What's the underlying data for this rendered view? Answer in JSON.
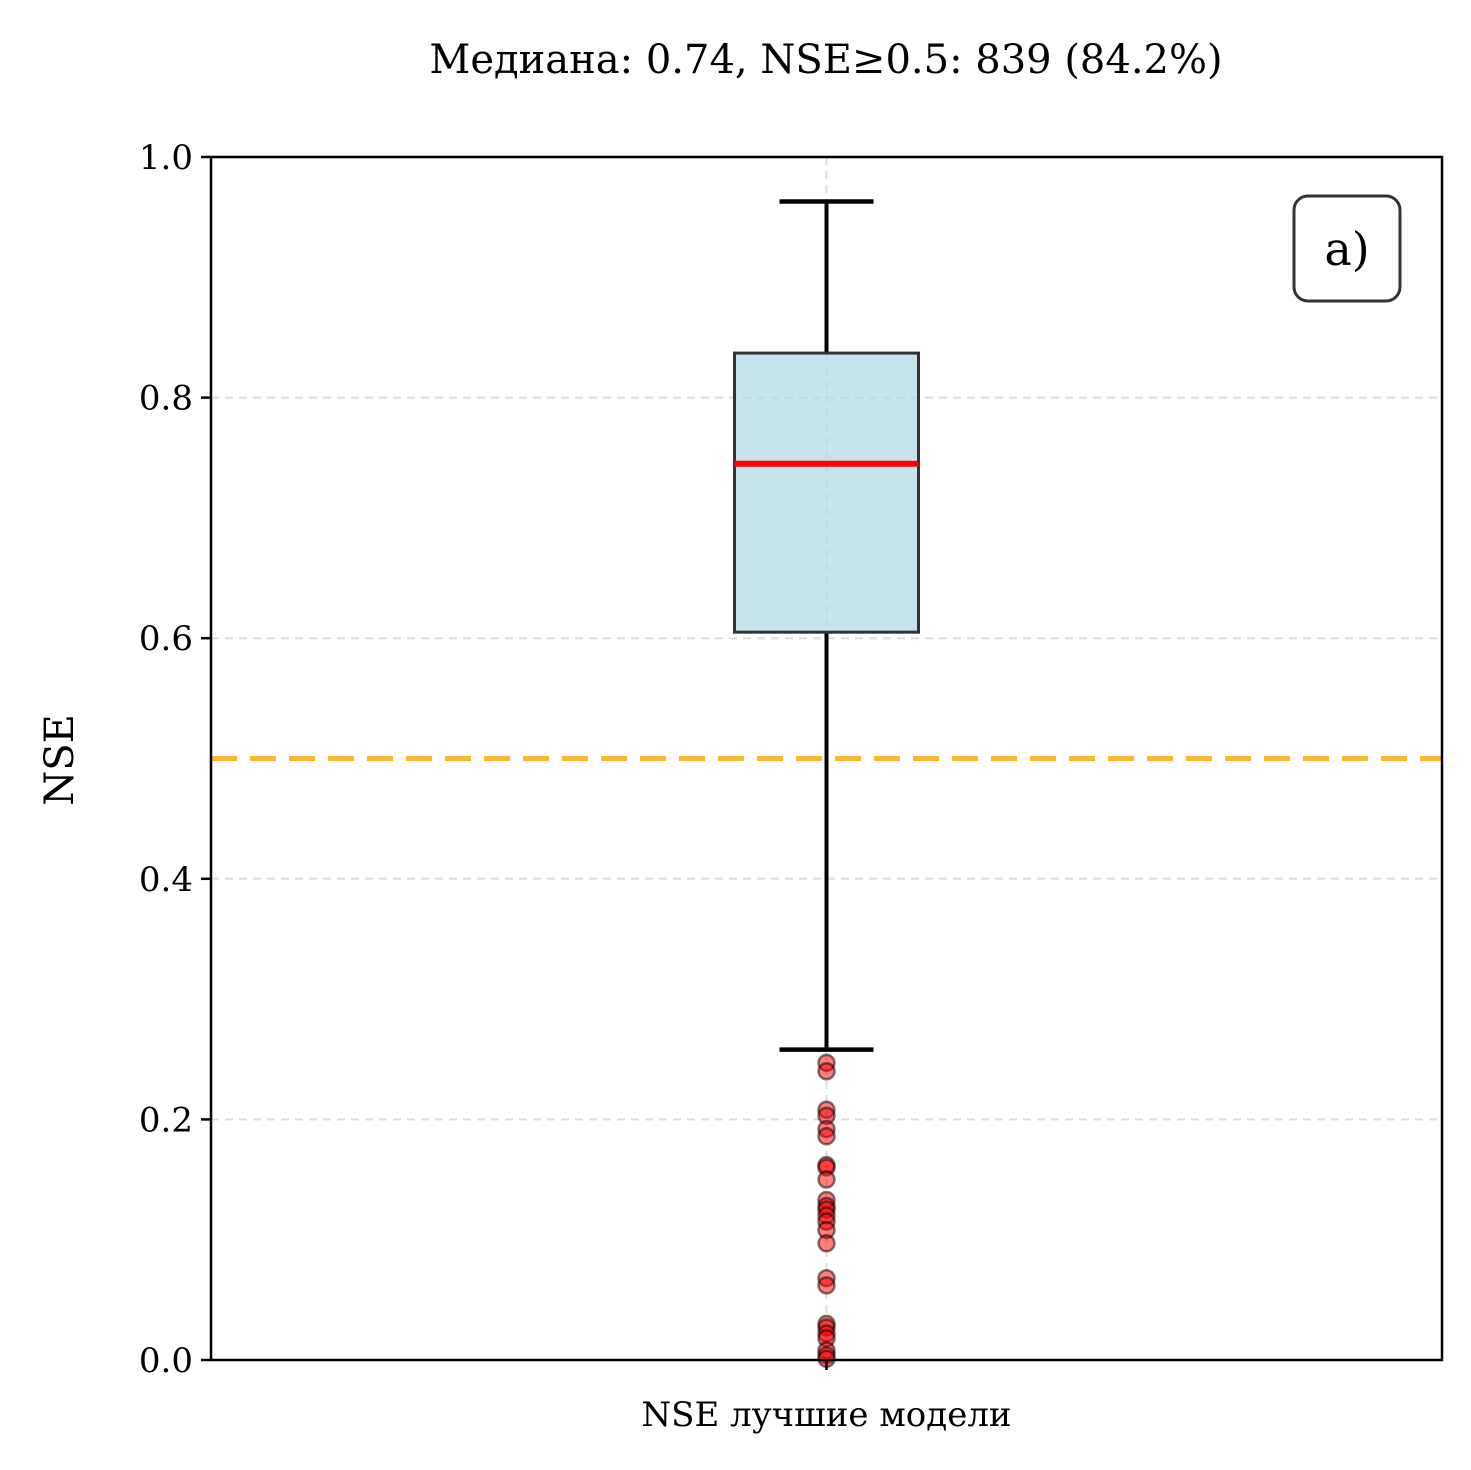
{
  "chart_data": {
    "type": "box",
    "title": "Медиана: 0.74, NSE≥0.5: 839 (84.2%)",
    "ylabel": "NSE",
    "xlabel": "",
    "categories": [
      "NSE лучшие модели"
    ],
    "ylim": [
      0,
      1
    ],
    "yticks": [
      "0.0",
      "0.2",
      "0.4",
      "0.6",
      "0.8",
      "1.0"
    ],
    "grid": "horizontal dashed",
    "panel_label": "a)",
    "box": {
      "whisker_low": 0.258,
      "q1": 0.605,
      "median": 0.745,
      "q3": 0.837,
      "whisker_high": 0.963
    },
    "outliers": [
      0.247,
      0.24,
      0.208,
      0.203,
      0.192,
      0.186,
      0.162,
      0.16,
      0.15,
      0.133,
      0.128,
      0.125,
      0.12,
      0.115,
      0.108,
      0.097,
      0.068,
      0.062,
      0.03,
      0.027,
      0.022,
      0.018,
      0.008,
      0.004,
      0.001
    ],
    "reference_line": {
      "y": 0.5,
      "style": "dashed"
    },
    "colors": {
      "box_fill": "#add8e6",
      "box_edge": "#333333",
      "median": "#ff0000",
      "reference": "#ffa500",
      "outlier_fill": "#ff0000",
      "grid": "#dddddd"
    }
  }
}
